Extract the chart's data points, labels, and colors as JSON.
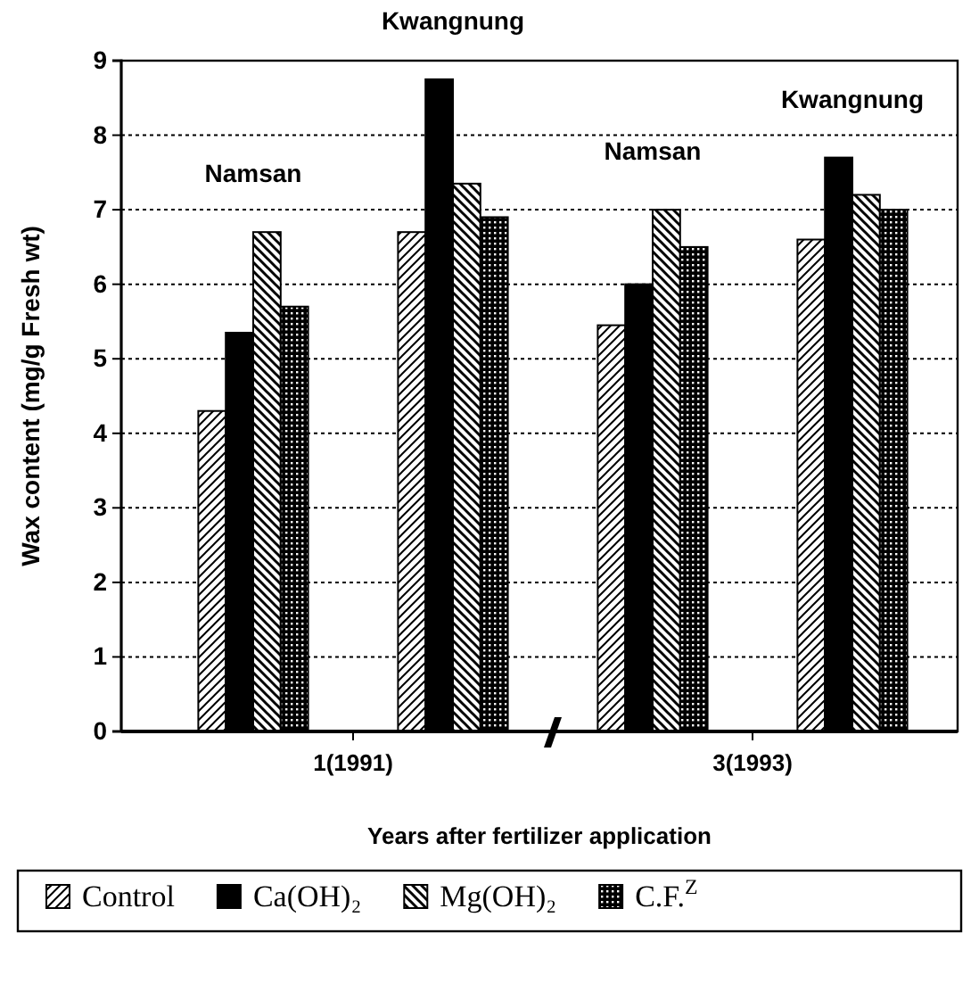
{
  "chart_data": {
    "type": "bar",
    "categories": [
      null,
      null,
      null,
      null
    ],
    "series": [
      {
        "name": "Control",
        "color": "#000000",
        "values": [
          4.3,
          6.7,
          5.45,
          6.6
        ]
      },
      {
        "name": "Ca(OH)₂",
        "color": "#000000",
        "values": [
          5.35,
          8.75,
          6.0,
          7.7
        ]
      },
      {
        "name": "Mg(OH)₂",
        "color": "#000000",
        "values": [
          6.7,
          7.35,
          7.0,
          7.2
        ]
      },
      {
        "name": "C.F.$^{Z}$",
        "color": "#000000",
        "values": [
          5.7,
          6.9,
          6.5,
          7.0
        ]
      }
    ],
    "ylim": [
      0,
      9
    ],
    "yticks": [
      0,
      1,
      2,
      3,
      4,
      5,
      6,
      7,
      8,
      9
    ],
    "xlabel": "Years after fertilizer application",
    "ylabel": "Wax content (mg/g Fresh wt)",
    "annotations": [
      "Namsan",
      "Kwangnung",
      "Namsan",
      "Kwangnung",
      "1(1991)",
      "3(1993)"
    ],
    "grid": "y",
    "legend": "bottom"
  }
}
